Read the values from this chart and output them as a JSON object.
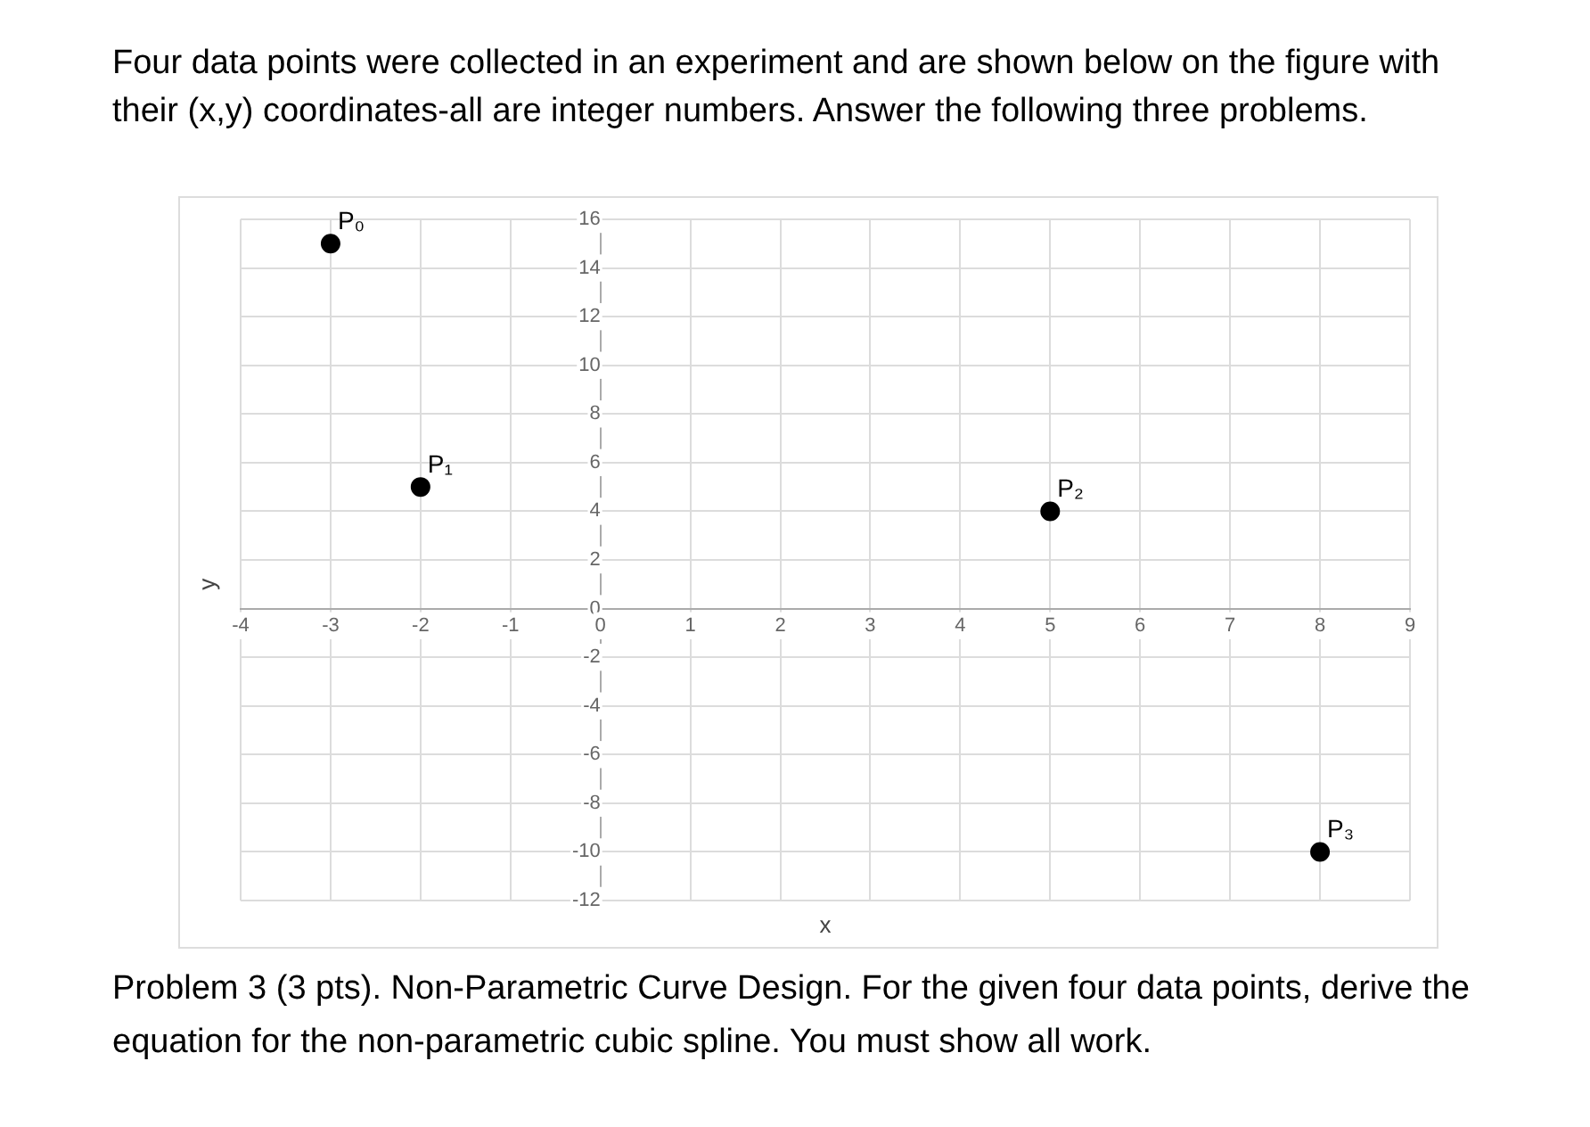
{
  "chart_data": {
    "type": "scatter",
    "title": "Four data points were collected in an experiment and are shown below on the figure with their (x,y) coordinates-all are integer numbers.  Answer the following three problems.",
    "xlabel": "x",
    "ylabel": "y",
    "x": [
      -3,
      -2,
      5,
      8
    ],
    "series": [
      {
        "color": "#000000",
        "values": [
          15,
          5,
          4,
          -10
        ]
      }
    ],
    "xlim": [
      -4,
      9
    ],
    "xticks": [
      -4,
      -3,
      -2,
      -1,
      0,
      1,
      2,
      3,
      4,
      5,
      6,
      7,
      8,
      9
    ],
    "ylim": [
      -12,
      16
    ],
    "yticks": [
      -12,
      -10,
      -8,
      -6,
      -4,
      -2,
      0,
      2,
      4,
      6,
      8,
      10,
      12,
      14,
      16
    ],
    "grid": true,
    "legend": false,
    "marker": "circle",
    "annotations": [
      {
        "text": "P₀",
        "x": -3,
        "y": 15
      },
      {
        "text": "P₁",
        "x": -2,
        "y": 5
      },
      {
        "text": "P₂",
        "x": 5,
        "y": 4
      },
      {
        "text": "P₃",
        "x": 8,
        "y": -10
      },
      "Problem 3 (3 pts). Non-Parametric Curve Design. For the given four data points, derive the equation for the non-parametric cubic spline.  You must show all work."
    ]
  }
}
